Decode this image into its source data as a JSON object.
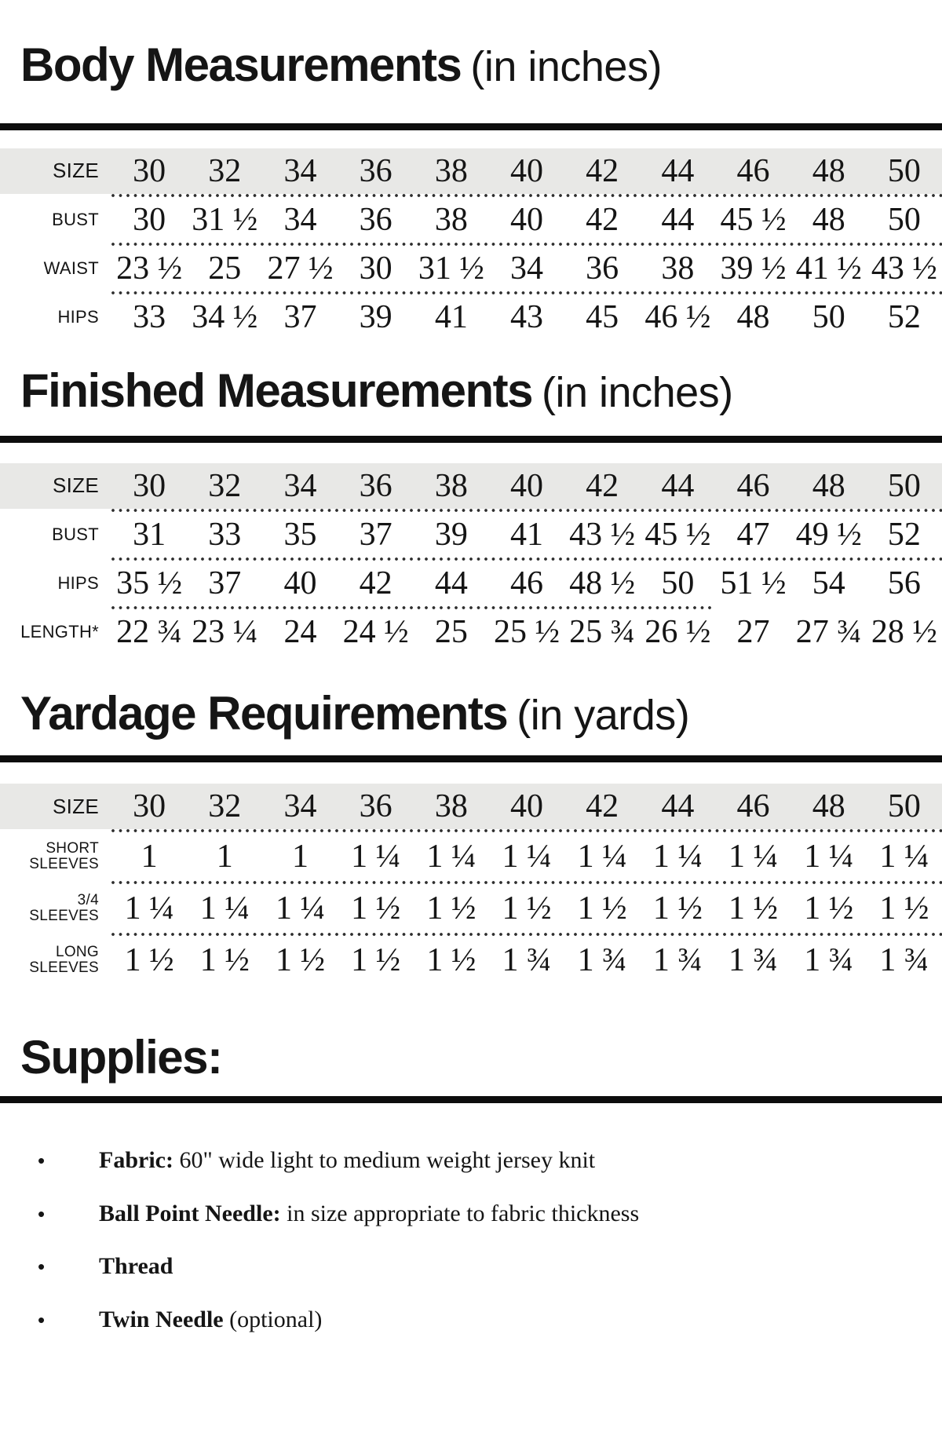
{
  "colors": {
    "header_row_bg": "#e8e8e6",
    "rule": "#0d0d0d",
    "text": "#151515"
  },
  "body": {
    "title": "Body Measurements",
    "paren": "(in inches)",
    "table": {
      "rows": [
        {
          "label": "SIZE",
          "header": true,
          "values": [
            "30",
            "32",
            "34",
            "36",
            "38",
            "40",
            "42",
            "44",
            "46",
            "48",
            "50"
          ]
        },
        {
          "label": "BUST",
          "values": [
            "30",
            "31 ½",
            "34",
            "36",
            "38",
            "40",
            "42",
            "44",
            "45 ½",
            "48",
            "50"
          ]
        },
        {
          "label": "WAIST",
          "values": [
            "23 ½",
            "25",
            "27 ½",
            "30",
            "31 ½",
            "34",
            "36",
            "38",
            "39 ½",
            "41 ½",
            "43 ½"
          ]
        },
        {
          "label": "HIPS",
          "values": [
            "33",
            "34 ½",
            "37",
            "39",
            "41",
            "43",
            "45",
            "46 ½",
            "48",
            "50",
            "52"
          ]
        }
      ]
    }
  },
  "finished": {
    "title": "Finished Measurements",
    "paren": "(in inches)",
    "table": {
      "rows": [
        {
          "label": "SIZE",
          "header": true,
          "values": [
            "30",
            "32",
            "34",
            "36",
            "38",
            "40",
            "42",
            "44",
            "46",
            "48",
            "50"
          ]
        },
        {
          "label": "BUST",
          "values": [
            "31",
            "33",
            "35",
            "37",
            "39",
            "41",
            "43 ½",
            "45 ½",
            "47",
            "49 ½",
            "52"
          ]
        },
        {
          "label": "HIPS",
          "divider_short": true,
          "values": [
            "35 ½",
            "37",
            "40",
            "42",
            "44",
            "46",
            "48 ½",
            "50",
            "51 ½",
            "54",
            "56"
          ]
        },
        {
          "label": "LENGTH*",
          "values": [
            "22 ¾",
            "23 ¼",
            "24",
            "24 ½",
            "25",
            "25 ½",
            "25 ¾",
            "26 ½",
            "27",
            "27 ¾",
            "28 ½"
          ]
        }
      ]
    }
  },
  "yardage": {
    "title": "Yardage Requirements",
    "paren": "(in yards)",
    "table": {
      "rows": [
        {
          "label": "SIZE",
          "header": true,
          "values": [
            "30",
            "32",
            "34",
            "36",
            "38",
            "40",
            "42",
            "44",
            "46",
            "48",
            "50"
          ]
        },
        {
          "label": "SHORT\nSLEEVES",
          "values": [
            "1",
            "1",
            "1",
            "1 ¼",
            "1 ¼",
            "1 ¼",
            "1 ¼",
            "1 ¼",
            "1 ¼",
            "1 ¼",
            "1 ¼"
          ]
        },
        {
          "label": "3/4\nSLEEVES",
          "values": [
            "1 ¼",
            "1 ¼",
            "1 ¼",
            "1 ½",
            "1 ½",
            "1 ½",
            "1 ½",
            "1 ½",
            "1 ½",
            "1 ½",
            "1 ½"
          ]
        },
        {
          "label": "LONG\nSLEEVES",
          "values": [
            "1 ½",
            "1 ½",
            "1 ½",
            "1 ½",
            "1 ½",
            "1 ¾",
            "1 ¾",
            "1 ¾",
            "1 ¾",
            "1 ¾",
            "1 ¾"
          ]
        }
      ]
    }
  },
  "supplies": {
    "title": "Supplies:",
    "items": [
      {
        "bold": "Fabric:",
        "rest": " 60\" wide light to medium weight jersey knit"
      },
      {
        "bold": "Ball Point Needle:",
        "rest": " in size appropriate to fabric thickness"
      },
      {
        "bold": "Thread",
        "rest": ""
      },
      {
        "bold": "Twin Needle",
        "rest": " (optional)"
      }
    ]
  }
}
